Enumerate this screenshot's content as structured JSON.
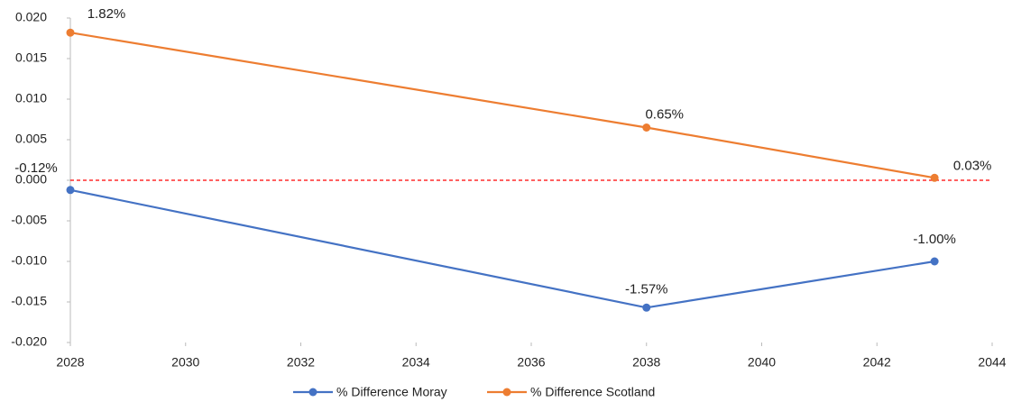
{
  "chart_data": {
    "type": "line",
    "x": [
      2028,
      2038,
      2043
    ],
    "series": [
      {
        "name": "% Difference Moray",
        "color": "#4472c4",
        "values": [
          -0.0012,
          -0.0157,
          -0.01
        ],
        "value_labels": [
          "-0.12%",
          "-1.57%",
          "-1.00%"
        ]
      },
      {
        "name": "% Difference Scotland",
        "color": "#ed7d31",
        "values": [
          0.0182,
          0.0065,
          0.0003
        ],
        "value_labels": [
          "1.82%",
          "0.65%",
          "0.03%"
        ]
      }
    ],
    "xlim": [
      2028,
      2044
    ],
    "xticks": [
      2028,
      2030,
      2032,
      2034,
      2036,
      2038,
      2040,
      2042,
      2044
    ],
    "ylim": [
      -0.02,
      0.02
    ],
    "yticks": [
      {
        "value": -0.02,
        "label": "-0.020"
      },
      {
        "value": -0.015,
        "label": "-0.015"
      },
      {
        "value": -0.01,
        "label": "-0.010"
      },
      {
        "value": -0.005,
        "label": "-0.005"
      },
      {
        "value": 0,
        "label": "0.000"
      },
      {
        "value": 0.005,
        "label": "0.005"
      },
      {
        "value": 0.01,
        "label": "0.010"
      },
      {
        "value": 0.015,
        "label": "0.015"
      },
      {
        "value": 0.02,
        "label": "0.020"
      }
    ],
    "reference_line": {
      "value": 0,
      "color": "#ff0000"
    },
    "legend": "bottom"
  }
}
